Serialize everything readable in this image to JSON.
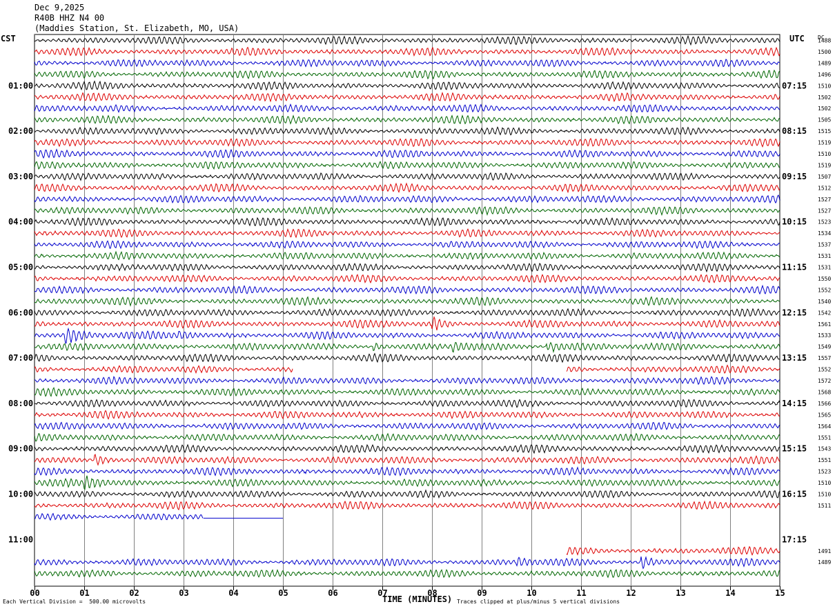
{
  "header": {
    "date": "Dec 9,2025",
    "channel": "R40B HHZ N4 00",
    "station": "(Maddies Station, St. Elizabeth, MO, USA)"
  },
  "labels": {
    "left_tz": "CST",
    "right_tz": "UTC",
    "dc": "DC",
    "x_title": "TIME (MINUTES)",
    "scale_note": "Each Vertical Division =  500.00 microvolts",
    "clip_note": "Traces clipped at plus/minus 5 vertical divisions"
  },
  "colors": {
    "trace_cycle": [
      "#000000",
      "#dd0000",
      "#0000cc",
      "#006600"
    ],
    "grid": "#808080"
  },
  "chart_data": {
    "type": "line",
    "title": "R40B HHZ N4 00",
    "subtitle": "(Maddies Station, St. Elizabeth, MO, USA)",
    "xlabel": "TIME (MINUTES)",
    "xlim": [
      0,
      15
    ],
    "x_ticks": [
      "00",
      "01",
      "02",
      "03",
      "04",
      "05",
      "06",
      "07",
      "08",
      "09",
      "10",
      "11",
      "12",
      "13",
      "14",
      "15"
    ],
    "rows_per_hour": 4,
    "minutes_per_row": 15,
    "left_hour_labels": [
      "01:00",
      "02:00",
      "03:00",
      "04:00",
      "05:00",
      "06:00",
      "07:00",
      "08:00",
      "09:00",
      "10:00",
      "11:00"
    ],
    "right_hour_labels": [
      "07:15",
      "08:15",
      "09:15",
      "10:15",
      "11:15",
      "12:15",
      "13:15",
      "14:15",
      "15:15",
      "16:15",
      "17:15"
    ],
    "first_labeled_row": 4,
    "row_count": 48,
    "dc_offsets": [
      "1488",
      "1500",
      "1489",
      "1496",
      "1510",
      "1502",
      "1502",
      "1505",
      "1515",
      "1519",
      "1510",
      "1519",
      "1507",
      "1512",
      "1527",
      "1527",
      "1523",
      "1534",
      "1537",
      "1531",
      "1531",
      "1550",
      "1552",
      "1540",
      "1542",
      "1561",
      "1533",
      "1549",
      "1557",
      "1552",
      "1572",
      "1568",
      "1566",
      "1565",
      "1564",
      "1551",
      "1543",
      "1551",
      "1523",
      "1510",
      "1510",
      "1511",
      "",
      "",
      "",
      "1491",
      "1489",
      ""
    ],
    "gaps": [
      {
        "row": 29,
        "from_minute": 5.2,
        "to_minute": 10.7
      },
      {
        "row": 42,
        "from_minute": 3.4,
        "to_minute": 15,
        "flat_until": 5.0
      },
      {
        "row": 43,
        "from_minute": 0,
        "to_minute": 15
      },
      {
        "row": 44,
        "from_minute": 0,
        "to_minute": 15
      },
      {
        "row": 45,
        "from_minute": 0,
        "to_minute": 10.7
      }
    ],
    "events": [
      {
        "row": 26,
        "minute": 0.6,
        "duration": 1.4
      },
      {
        "row": 26,
        "minute": 2.9,
        "duration": 0.6
      },
      {
        "row": 25,
        "minute": 8.0,
        "duration": 0.5
      },
      {
        "row": 27,
        "minute": 6.8,
        "duration": 0.4
      },
      {
        "row": 27,
        "minute": 8.4,
        "duration": 0.6
      },
      {
        "row": 27,
        "minute": 10.3,
        "duration": 1.2
      },
      {
        "row": 37,
        "minute": 1.2,
        "duration": 0.8
      },
      {
        "row": 39,
        "minute": 1.0,
        "duration": 1.0
      },
      {
        "row": 46,
        "minute": 9.7,
        "duration": 0.5
      },
      {
        "row": 46,
        "minute": 12.2,
        "duration": 0.4
      }
    ]
  }
}
